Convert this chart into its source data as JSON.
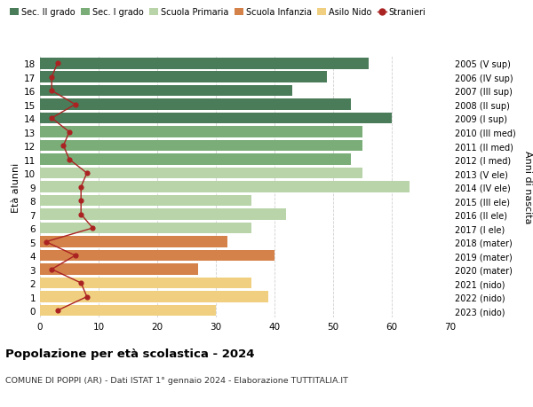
{
  "ages": [
    18,
    17,
    16,
    15,
    14,
    13,
    12,
    11,
    10,
    9,
    8,
    7,
    6,
    5,
    4,
    3,
    2,
    1,
    0
  ],
  "years": [
    "2005 (V sup)",
    "2006 (IV sup)",
    "2007 (III sup)",
    "2008 (II sup)",
    "2009 (I sup)",
    "2010 (III med)",
    "2011 (II med)",
    "2012 (I med)",
    "2013 (V ele)",
    "2014 (IV ele)",
    "2015 (III ele)",
    "2016 (II ele)",
    "2017 (I ele)",
    "2018 (mater)",
    "2019 (mater)",
    "2020 (mater)",
    "2021 (nido)",
    "2022 (nido)",
    "2023 (nido)"
  ],
  "bar_values": [
    56,
    49,
    43,
    53,
    60,
    55,
    55,
    53,
    55,
    63,
    36,
    42,
    36,
    32,
    40,
    27,
    36,
    39,
    30
  ],
  "bar_colors": [
    "#4a7c59",
    "#4a7c59",
    "#4a7c59",
    "#4a7c59",
    "#4a7c59",
    "#7aad78",
    "#7aad78",
    "#7aad78",
    "#b8d4a8",
    "#b8d4a8",
    "#b8d4a8",
    "#b8d4a8",
    "#b8d4a8",
    "#d4824a",
    "#d4824a",
    "#d4824a",
    "#f0d080",
    "#f0d080",
    "#f0d080"
  ],
  "stranieri_values": [
    3,
    2,
    2,
    6,
    2,
    5,
    4,
    5,
    8,
    7,
    7,
    7,
    9,
    1,
    6,
    2,
    7,
    8,
    3
  ],
  "legend_labels": [
    "Sec. II grado",
    "Sec. I grado",
    "Scuola Primaria",
    "Scuola Infanzia",
    "Asilo Nido",
    "Stranieri"
  ],
  "legend_colors": [
    "#4a7c59",
    "#7aad78",
    "#b8d4a8",
    "#d4824a",
    "#f0d080",
    "#aa2222"
  ],
  "ylabel_left": "Età alunni",
  "ylabel_right": "Anni di nascita",
  "title": "Popolazione per età scolastica - 2024",
  "subtitle": "COMUNE DI POPPI (AR) - Dati ISTAT 1° gennaio 2024 - Elaborazione TUTTITALIA.IT",
  "xlim": [
    0,
    70
  ],
  "xticks": [
    0,
    10,
    20,
    30,
    40,
    50,
    60,
    70
  ],
  "background_color": "#ffffff",
  "grid_color": "#d0d0d0"
}
